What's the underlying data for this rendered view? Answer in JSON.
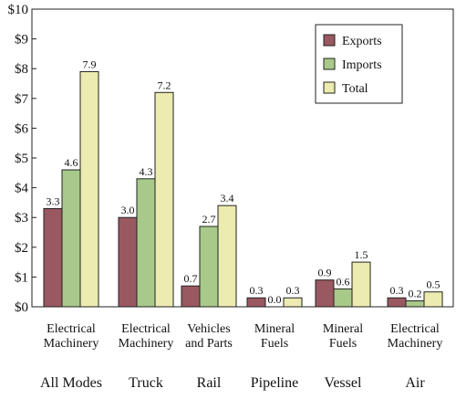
{
  "chart_data": {
    "type": "bar",
    "ylim": [
      0,
      10
    ],
    "yticks": [
      0,
      1,
      2,
      3,
      4,
      5,
      6,
      7,
      8,
      9,
      10
    ],
    "ytick_labels": [
      "$0",
      "$1",
      "$2",
      "$3",
      "$4",
      "$5",
      "$6",
      "$7",
      "$8",
      "$9",
      "$10"
    ],
    "categories": [
      "Electrical Machinery",
      "Electrical Machinery",
      "Vehicles and Parts",
      "Mineral Fuels",
      "Mineral Fuels",
      "Electrical Machinery"
    ],
    "category_lines": [
      [
        "Electrical",
        "Machinery"
      ],
      [
        "Electrical",
        "Machinery"
      ],
      [
        "Vehicles",
        "and Parts"
      ],
      [
        "Mineral",
        "Fuels"
      ],
      [
        "Mineral",
        "Fuels"
      ],
      [
        "Electrical",
        "Machinery"
      ]
    ],
    "modes": [
      "All Modes",
      "Truck",
      "Rail",
      "Pipeline",
      "Vessel",
      "Air"
    ],
    "series": [
      {
        "name": "Exports",
        "color": "#9a5860",
        "values": [
          3.3,
          3.0,
          0.7,
          0.3,
          0.9,
          0.3
        ],
        "labels": [
          "3.3",
          "3.0",
          "0.7",
          "0.3",
          "0.9",
          "0.3"
        ]
      },
      {
        "name": "Imports",
        "color": "#a8c98a",
        "values": [
          4.6,
          4.3,
          2.7,
          0.0,
          0.6,
          0.2
        ],
        "labels": [
          "4.6",
          "4.3",
          "2.7",
          "0.0",
          "0.6",
          "0.2"
        ]
      },
      {
        "name": "Total",
        "color": "#ecebb0",
        "values": [
          7.9,
          7.2,
          3.4,
          0.3,
          1.5,
          0.5
        ],
        "labels": [
          "7.9",
          "7.2",
          "3.4",
          "0.3",
          "1.5",
          "0.5"
        ]
      }
    ],
    "grid": false,
    "legend_position": "top-right"
  }
}
